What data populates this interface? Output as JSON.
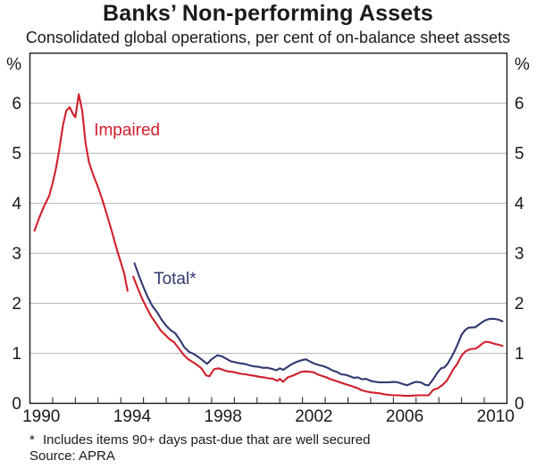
{
  "chart_data": {
    "type": "line",
    "title": "Banks’ Non-performing Assets",
    "subtitle": "Consolidated global operations, per cent of on-balance sheet assets",
    "unit_label": "%",
    "x_axis": {
      "min": 1990,
      "max": 2011,
      "minor_tick_interval": 1,
      "tick_labels": [
        "1990",
        "1994",
        "1998",
        "2002",
        "2006",
        "2010"
      ],
      "tick_label_years": [
        1990,
        1994,
        1998,
        2002,
        2006,
        2010
      ]
    },
    "y_axis": {
      "min": 0,
      "max": 7,
      "tick_labels": [
        "0",
        "1",
        "2",
        "3",
        "4",
        "5",
        "6"
      ],
      "tick_values": [
        0,
        1,
        2,
        3,
        4,
        5,
        6
      ],
      "gridline_values": [
        1,
        2,
        3,
        4,
        5,
        6
      ],
      "labels_on_both_sides": true,
      "grid": "horizontal-only"
    },
    "series": [
      {
        "name": "Impaired",
        "color": "#d01f2c",
        "label": {
          "text": "Impaired",
          "x": 1992.82,
          "y": 5.45
        },
        "segments": [
          [
            [
              1990.2,
              3.45
            ],
            [
              1990.4,
              3.7
            ],
            [
              1990.6,
              3.92
            ],
            [
              1990.85,
              4.15
            ],
            [
              1991.0,
              4.4
            ],
            [
              1991.15,
              4.7
            ],
            [
              1991.3,
              5.1
            ],
            [
              1991.45,
              5.55
            ],
            [
              1991.6,
              5.85
            ],
            [
              1991.75,
              5.92
            ],
            [
              1991.9,
              5.78
            ],
            [
              1992.0,
              5.72
            ],
            [
              1992.15,
              6.18
            ],
            [
              1992.3,
              5.85
            ],
            [
              1992.45,
              5.2
            ],
            [
              1992.6,
              4.82
            ],
            [
              1992.8,
              4.55
            ],
            [
              1993.0,
              4.32
            ],
            [
              1993.2,
              4.05
            ],
            [
              1993.4,
              3.75
            ],
            [
              1993.6,
              3.45
            ],
            [
              1993.8,
              3.12
            ],
            [
              1994.0,
              2.82
            ],
            [
              1994.15,
              2.6
            ],
            [
              1994.3,
              2.25
            ]
          ],
          [
            [
              1994.55,
              2.53
            ],
            [
              1994.75,
              2.3
            ],
            [
              1994.95,
              2.08
            ],
            [
              1995.15,
              1.9
            ],
            [
              1995.35,
              1.73
            ],
            [
              1995.55,
              1.6
            ],
            [
              1995.75,
              1.46
            ],
            [
              1995.95,
              1.37
            ],
            [
              1996.15,
              1.28
            ],
            [
              1996.35,
              1.22
            ],
            [
              1996.55,
              1.1
            ],
            [
              1996.75,
              0.98
            ],
            [
              1996.95,
              0.89
            ],
            [
              1997.15,
              0.83
            ],
            [
              1997.35,
              0.77
            ],
            [
              1997.55,
              0.7
            ],
            [
              1997.75,
              0.56
            ],
            [
              1997.9,
              0.54
            ],
            [
              1998.1,
              0.68
            ],
            [
              1998.3,
              0.7
            ],
            [
              1998.5,
              0.67
            ],
            [
              1998.7,
              0.64
            ],
            [
              1998.9,
              0.63
            ],
            [
              1999.1,
              0.61
            ],
            [
              1999.3,
              0.59
            ],
            [
              1999.5,
              0.58
            ],
            [
              1999.7,
              0.56
            ],
            [
              1999.9,
              0.55
            ],
            [
              2000.1,
              0.53
            ],
            [
              2000.3,
              0.52
            ],
            [
              2000.5,
              0.5
            ],
            [
              2000.7,
              0.49
            ],
            [
              2000.9,
              0.45
            ],
            [
              2001.0,
              0.49
            ],
            [
              2001.15,
              0.43
            ],
            [
              2001.35,
              0.52
            ],
            [
              2001.55,
              0.55
            ],
            [
              2001.75,
              0.59
            ],
            [
              2001.95,
              0.63
            ],
            [
              2002.1,
              0.64
            ],
            [
              2002.3,
              0.63
            ],
            [
              2002.5,
              0.62
            ],
            [
              2002.65,
              0.58
            ],
            [
              2002.85,
              0.55
            ],
            [
              2003.05,
              0.52
            ],
            [
              2003.25,
              0.48
            ],
            [
              2003.45,
              0.45
            ],
            [
              2003.65,
              0.42
            ],
            [
              2003.85,
              0.39
            ],
            [
              2004.05,
              0.36
            ],
            [
              2004.25,
              0.33
            ],
            [
              2004.45,
              0.3
            ],
            [
              2004.6,
              0.26
            ],
            [
              2004.8,
              0.24
            ],
            [
              2005.0,
              0.22
            ],
            [
              2005.2,
              0.21
            ],
            [
              2005.4,
              0.2
            ],
            [
              2005.6,
              0.18
            ],
            [
              2005.8,
              0.17
            ],
            [
              2006.0,
              0.16
            ],
            [
              2006.25,
              0.16
            ],
            [
              2006.5,
              0.15
            ],
            [
              2006.75,
              0.15
            ],
            [
              2007.0,
              0.16
            ],
            [
              2007.25,
              0.16
            ],
            [
              2007.55,
              0.16
            ],
            [
              2007.75,
              0.27
            ],
            [
              2007.95,
              0.3
            ],
            [
              2008.15,
              0.36
            ],
            [
              2008.35,
              0.45
            ],
            [
              2008.5,
              0.57
            ],
            [
              2008.65,
              0.69
            ],
            [
              2008.8,
              0.78
            ],
            [
              2009.0,
              0.95
            ],
            [
              2009.15,
              1.03
            ],
            [
              2009.3,
              1.07
            ],
            [
              2009.45,
              1.09
            ],
            [
              2009.6,
              1.09
            ],
            [
              2009.75,
              1.13
            ],
            [
              2009.9,
              1.19
            ],
            [
              2010.05,
              1.23
            ],
            [
              2010.25,
              1.22
            ],
            [
              2010.45,
              1.19
            ],
            [
              2010.65,
              1.17
            ],
            [
              2010.8,
              1.15
            ]
          ]
        ]
      },
      {
        "name": "Total*",
        "color": "#303870",
        "label": {
          "text": "Total*",
          "x": 1995.45,
          "y": 2.47
        },
        "segments": [
          [
            [
              1994.6,
              2.8
            ],
            [
              1994.8,
              2.55
            ],
            [
              1995.0,
              2.32
            ],
            [
              1995.2,
              2.11
            ],
            [
              1995.4,
              1.94
            ],
            [
              1995.6,
              1.82
            ],
            [
              1995.8,
              1.67
            ],
            [
              1996.0,
              1.55
            ],
            [
              1996.2,
              1.46
            ],
            [
              1996.4,
              1.4
            ],
            [
              1996.6,
              1.27
            ],
            [
              1996.8,
              1.12
            ],
            [
              1997.0,
              1.03
            ],
            [
              1997.2,
              0.99
            ],
            [
              1997.4,
              0.93
            ],
            [
              1997.6,
              0.86
            ],
            [
              1997.8,
              0.79
            ],
            [
              1998.0,
              0.88
            ],
            [
              1998.25,
              0.96
            ],
            [
              1998.45,
              0.94
            ],
            [
              1998.65,
              0.89
            ],
            [
              1998.85,
              0.84
            ],
            [
              1999.05,
              0.82
            ],
            [
              1999.25,
              0.8
            ],
            [
              1999.45,
              0.79
            ],
            [
              1999.65,
              0.76
            ],
            [
              1999.85,
              0.74
            ],
            [
              2000.05,
              0.73
            ],
            [
              2000.25,
              0.71
            ],
            [
              2000.45,
              0.71
            ],
            [
              2000.65,
              0.69
            ],
            [
              2000.85,
              0.66
            ],
            [
              2001.0,
              0.7
            ],
            [
              2001.15,
              0.67
            ],
            [
              2001.35,
              0.73
            ],
            [
              2001.55,
              0.79
            ],
            [
              2001.75,
              0.83
            ],
            [
              2001.95,
              0.86
            ],
            [
              2002.15,
              0.88
            ],
            [
              2002.35,
              0.83
            ],
            [
              2002.55,
              0.79
            ],
            [
              2002.75,
              0.76
            ],
            [
              2002.95,
              0.74
            ],
            [
              2003.15,
              0.7
            ],
            [
              2003.3,
              0.66
            ],
            [
              2003.5,
              0.63
            ],
            [
              2003.7,
              0.58
            ],
            [
              2003.9,
              0.57
            ],
            [
              2004.1,
              0.54
            ],
            [
              2004.25,
              0.51
            ],
            [
              2004.45,
              0.52
            ],
            [
              2004.6,
              0.48
            ],
            [
              2004.8,
              0.49
            ],
            [
              2005.0,
              0.45
            ],
            [
              2005.2,
              0.43
            ],
            [
              2005.4,
              0.42
            ],
            [
              2005.6,
              0.42
            ],
            [
              2005.8,
              0.42
            ],
            [
              2006.0,
              0.43
            ],
            [
              2006.2,
              0.42
            ],
            [
              2006.4,
              0.39
            ],
            [
              2006.6,
              0.36
            ],
            [
              2006.8,
              0.4
            ],
            [
              2007.0,
              0.43
            ],
            [
              2007.2,
              0.42
            ],
            [
              2007.4,
              0.37
            ],
            [
              2007.55,
              0.36
            ],
            [
              2007.75,
              0.48
            ],
            [
              2007.95,
              0.62
            ],
            [
              2008.1,
              0.7
            ],
            [
              2008.25,
              0.72
            ],
            [
              2008.4,
              0.8
            ],
            [
              2008.55,
              0.92
            ],
            [
              2008.7,
              1.05
            ],
            [
              2008.85,
              1.2
            ],
            [
              2009.0,
              1.37
            ],
            [
              2009.15,
              1.46
            ],
            [
              2009.3,
              1.51
            ],
            [
              2009.45,
              1.52
            ],
            [
              2009.6,
              1.52
            ],
            [
              2009.75,
              1.57
            ],
            [
              2009.9,
              1.62
            ],
            [
              2010.05,
              1.66
            ],
            [
              2010.25,
              1.69
            ],
            [
              2010.45,
              1.69
            ],
            [
              2010.65,
              1.67
            ],
            [
              2010.8,
              1.64
            ]
          ]
        ]
      }
    ],
    "footnote": {
      "marker": "*",
      "text": "Includes items 90+ days past-due that are well secured"
    },
    "source": "Source: APRA",
    "style": {
      "gridline_color": "#b9b9b9",
      "axis_color": "#1a1a1a",
      "text_color": "#1a1a1a",
      "background": "#ffffff"
    }
  }
}
